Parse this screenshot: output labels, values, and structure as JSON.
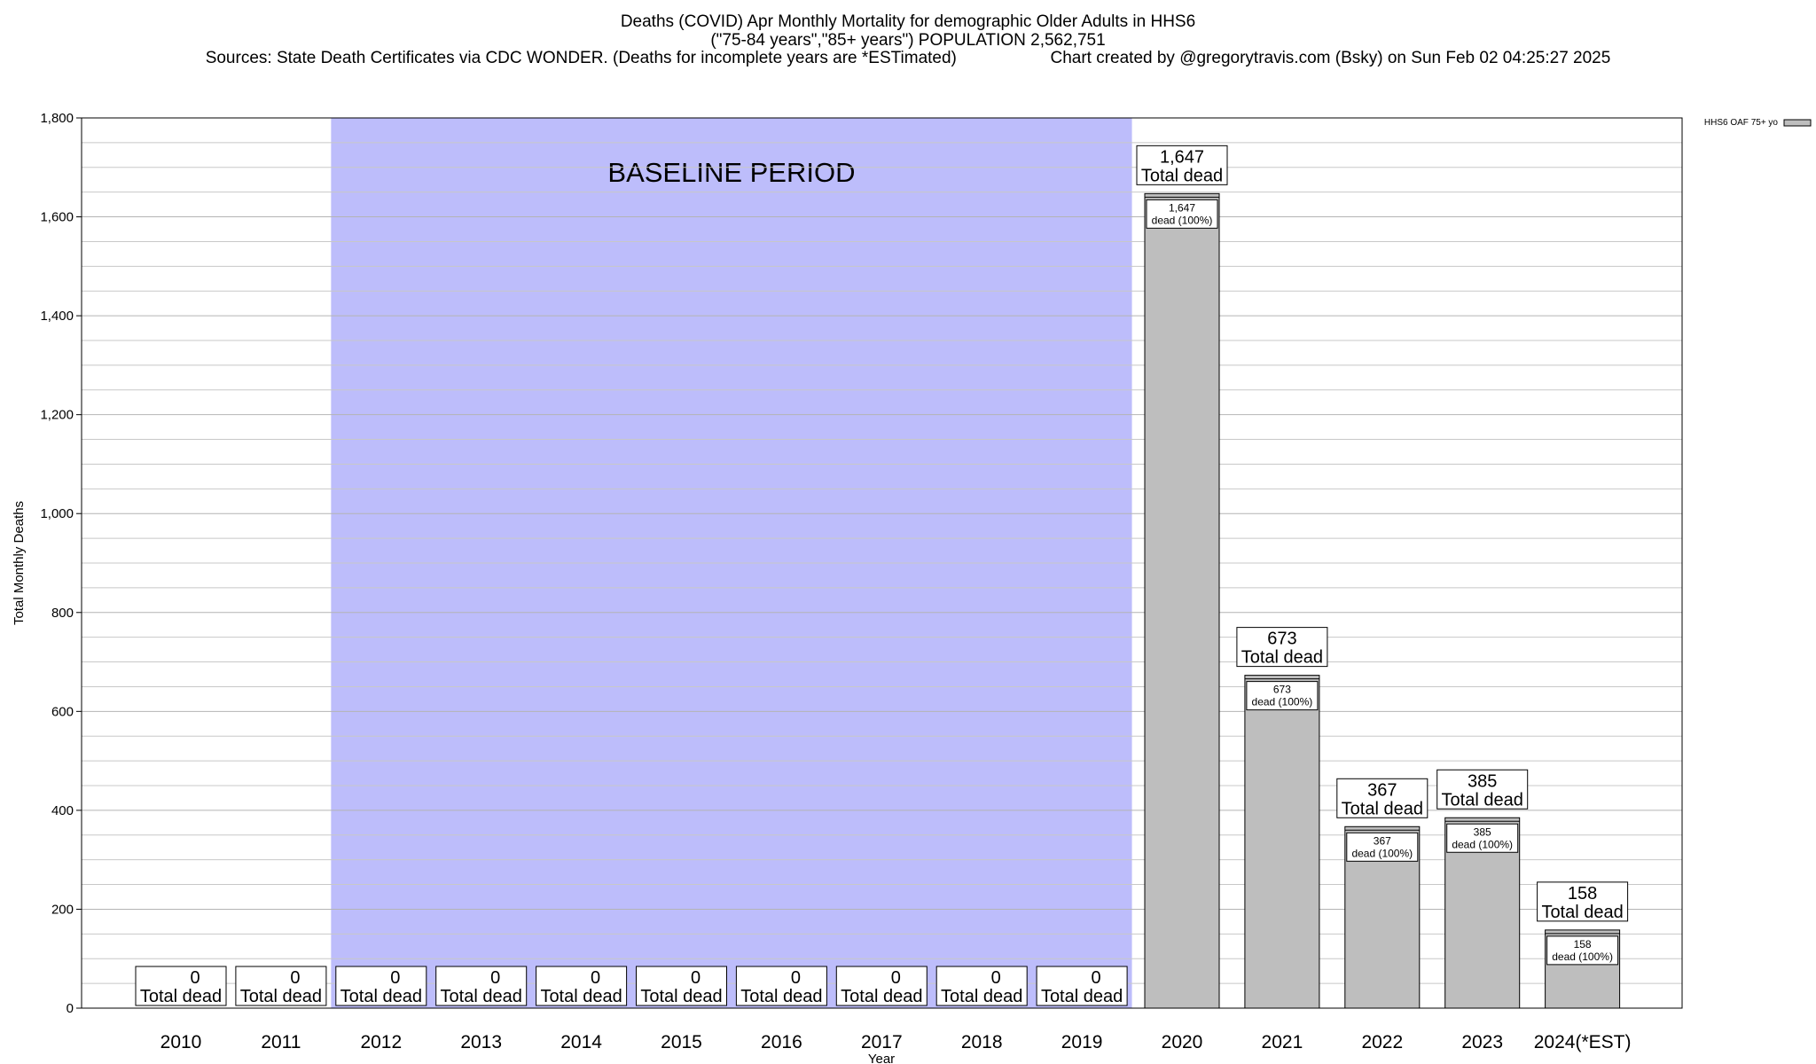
{
  "header": {
    "title": "Deaths (COVID) Apr Monthly Mortality for demographic Older Adults in HHS6",
    "subtitle": "(\"75-84 years\",\"85+ years\") POPULATION 2,562,751",
    "sources": "Sources: State Death Certificates via CDC WONDER. (Deaths for incomplete years are *ESTimated)",
    "credit": "Chart created by @gregorytravis.com (Bsky) on Sun Feb 02 04:25:27 2025"
  },
  "colors": {
    "baseline_band": "#bdbdfb",
    "bar_fill": "#bebebe",
    "grid": "#c8c8c8"
  },
  "chart_data": {
    "type": "bar",
    "xlabel": "Year",
    "ylabel": "Total Monthly Deaths",
    "ylim": [
      0,
      1800
    ],
    "yticks": [
      0,
      200,
      400,
      600,
      800,
      1000,
      1200,
      1400,
      1600,
      1800
    ],
    "ytick_labels": [
      "0",
      "200",
      "400",
      "600",
      "800",
      "1,000",
      "1,200",
      "1,400",
      "1,600",
      "1,800"
    ],
    "grid": true,
    "legend": {
      "position": "top-right",
      "entries": [
        "HHS6 OAF 75+ yo"
      ]
    },
    "baseline_band": {
      "label": "BASELINE PERIOD",
      "from": "2012",
      "to": "2019"
    },
    "categories": [
      "2010",
      "2011",
      "2012",
      "2013",
      "2014",
      "2015",
      "2016",
      "2017",
      "2018",
      "2019",
      "2020",
      "2021",
      "2022",
      "2023",
      "2024(*EST)"
    ],
    "series": [
      {
        "name": "HHS6 OAF 75+ yo",
        "values": [
          0,
          0,
          0,
          0,
          0,
          0,
          0,
          0,
          0,
          0,
          1647,
          673,
          367,
          385,
          158
        ]
      }
    ],
    "total_labels": [
      "0",
      "0",
      "0",
      "0",
      "0",
      "0",
      "0",
      "0",
      "0",
      "0",
      "1,647",
      "673",
      "367",
      "385",
      "158"
    ],
    "total_suffix": "Total dead",
    "inner_labels": [
      "",
      "",
      "",
      "",
      "",
      "",
      "",
      "",
      "",
      "",
      "1,647",
      "673",
      "367",
      "385",
      "158"
    ],
    "inner_suffix": "dead (100%)"
  }
}
